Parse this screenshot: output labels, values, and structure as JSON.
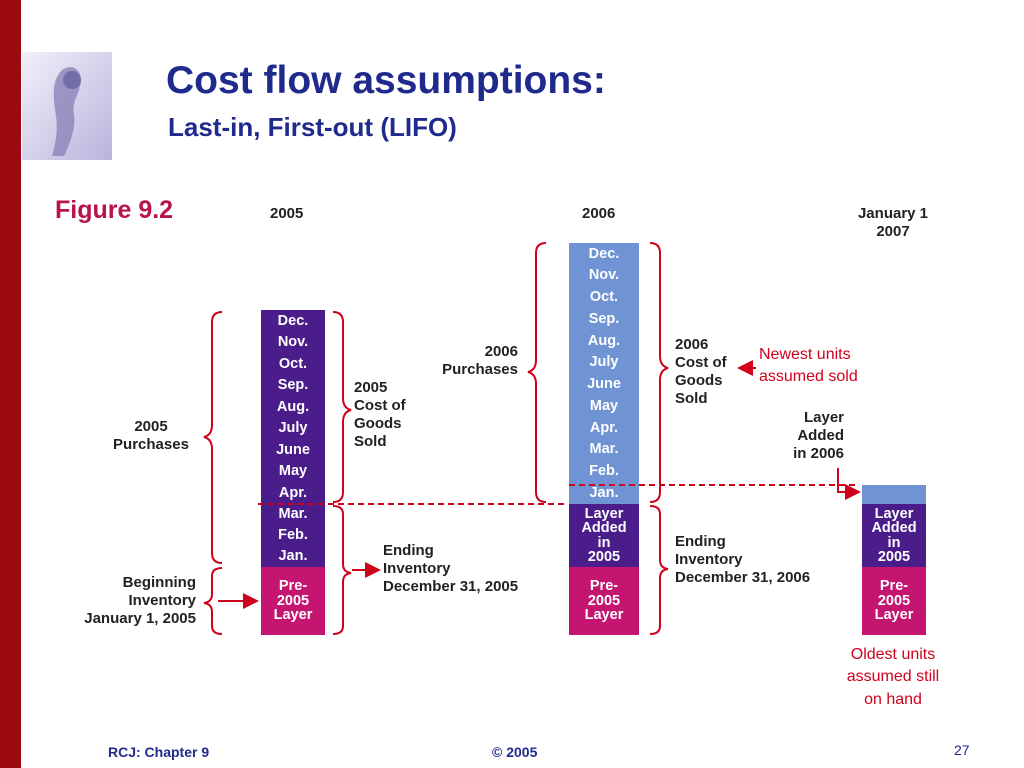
{
  "slide": {
    "title": "Cost flow assumptions:",
    "subtitle": "Last-in, First-out (LIFO)",
    "figure_label": "Figure 9.2",
    "colors": {
      "accent_bar": "#9b0a0f",
      "title": "#1f2a8c",
      "purchases": "#4a1d8b",
      "prior_layer": "#c41670",
      "new_purchases": "#6f93d3",
      "bracket": "#d0021b"
    }
  },
  "headers": {
    "year_2005": "2005",
    "year_2006": "2006",
    "jan2007_line1": "January 1",
    "jan2007_line2": "2007"
  },
  "col2005": {
    "months": [
      "Dec.",
      "Nov.",
      "Oct.",
      "Sep.",
      "Aug.",
      "July",
      "June",
      "May",
      "Apr."
    ],
    "ending_months": [
      "Mar.",
      "Feb.",
      "Jan."
    ],
    "layer_lines": [
      "Pre-",
      "2005",
      "Layer"
    ]
  },
  "col2006": {
    "months": [
      "Dec.",
      "Nov.",
      "Oct.",
      "Sep.",
      "Aug.",
      "July",
      "June",
      "May",
      "Apr.",
      "Mar.",
      "Feb.",
      "Jan."
    ],
    "added_lines": [
      "Layer",
      "Added",
      "in",
      "2005"
    ],
    "layer_lines": [
      "Pre-",
      "2005",
      "Layer"
    ]
  },
  "col2007": {
    "added_lines": [
      "Layer",
      "Added",
      "in",
      "2005"
    ],
    "layer_lines": [
      "Pre-",
      "2005",
      "Layer"
    ]
  },
  "labels": {
    "purchases_2005": [
      "2005",
      "Purchases"
    ],
    "beginning_inventory": [
      "Beginning",
      "Inventory",
      "January 1, 2005"
    ],
    "cogs_2005": [
      "2005",
      "Cost of",
      "Goods",
      "Sold"
    ],
    "ending_2005": [
      "Ending",
      "Inventory",
      "December 31, 2005"
    ],
    "purchases_2006": [
      "2006",
      "Purchases"
    ],
    "cogs_2006": [
      "2006",
      "Cost of",
      "Goods",
      "Sold"
    ],
    "ending_2006": [
      "Ending",
      "Inventory",
      "December 31, 2006"
    ],
    "layer_added_2006": [
      "Layer",
      "Added",
      "in 2006"
    ]
  },
  "notes": {
    "newest": [
      "Newest units",
      "assumed sold"
    ],
    "oldest": [
      "Oldest units",
      "assumed still",
      "on hand"
    ]
  },
  "footer": {
    "left": "RCJ: Chapter 9",
    "center": "© 2005",
    "page": "27"
  }
}
